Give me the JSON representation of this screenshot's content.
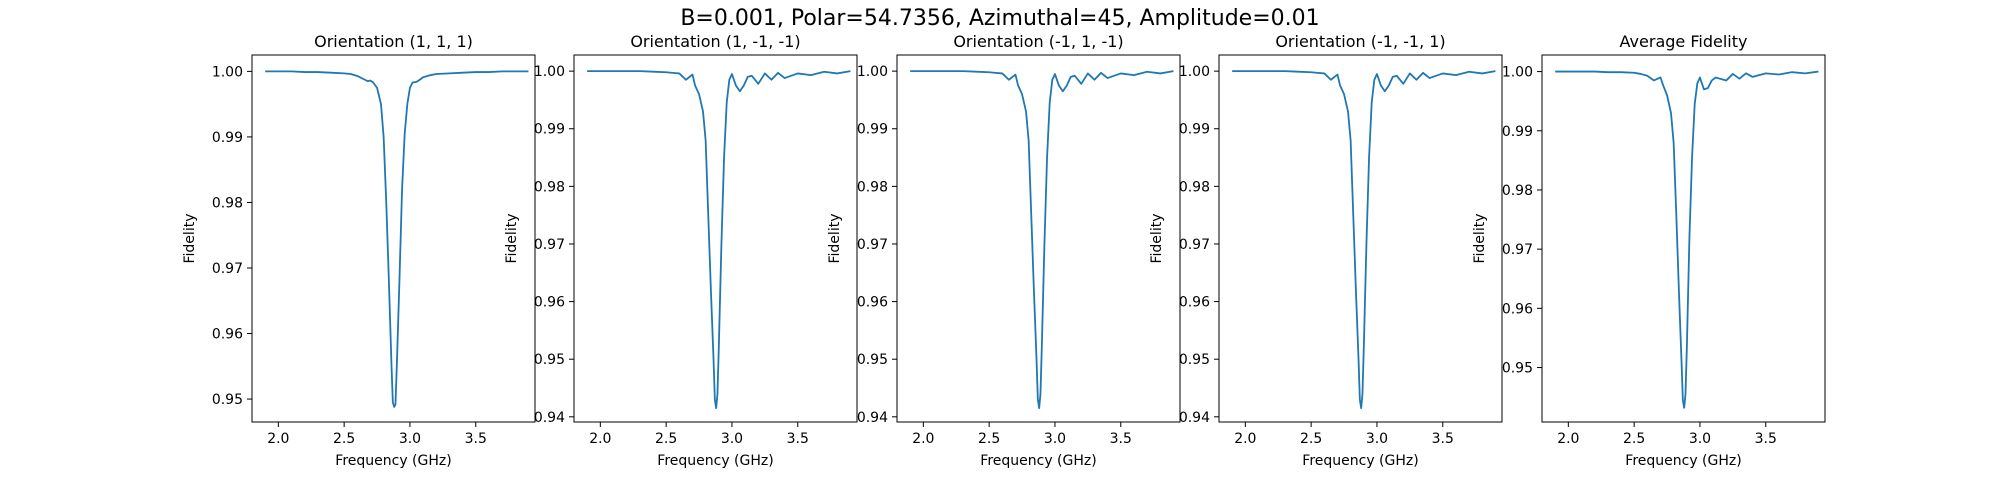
{
  "figure": {
    "title": "B=0.001, Polar=54.7356, Azimuthal=45, Amplitude=0.01"
  },
  "colors": {
    "line": "#1f77b4",
    "axes": "#000000",
    "background": "#ffffff"
  },
  "chart_data": [
    {
      "type": "line",
      "title": "Orientation (1, 1, 1)",
      "xlabel": "Frequency (GHz)",
      "ylabel": "Fidelity",
      "xlim": [
        1.8,
        3.95
      ],
      "ylim": [
        0.9465,
        1.0025
      ],
      "xticks": [
        "2.0",
        "2.5",
        "3.0",
        "3.5"
      ],
      "yticks": [
        "0.95",
        "0.96",
        "0.97",
        "0.98",
        "0.99",
        "1.00"
      ],
      "grid": false,
      "series": [
        {
          "x": [
            1.9,
            2.0,
            2.1,
            2.2,
            2.3,
            2.4,
            2.5,
            2.55,
            2.6,
            2.65,
            2.68,
            2.7,
            2.72,
            2.75,
            2.78,
            2.8,
            2.82,
            2.84,
            2.86,
            2.87,
            2.88,
            2.89,
            2.9,
            2.92,
            2.94,
            2.96,
            2.98,
            3.0,
            3.02,
            3.05,
            3.08,
            3.1,
            3.15,
            3.2,
            3.3,
            3.4,
            3.5,
            3.6,
            3.7,
            3.8,
            3.9
          ],
          "y": [
            1.0,
            1.0,
            1.0,
            0.9999,
            0.9999,
            0.9998,
            0.9997,
            0.9996,
            0.9993,
            0.9988,
            0.9985,
            0.9986,
            0.9983,
            0.9975,
            0.995,
            0.99,
            0.98,
            0.968,
            0.955,
            0.9495,
            0.9488,
            0.9492,
            0.955,
            0.968,
            0.982,
            0.9905,
            0.995,
            0.9975,
            0.9983,
            0.9984,
            0.9988,
            0.9991,
            0.9994,
            0.9996,
            0.9997,
            0.9998,
            0.9999,
            0.9999,
            1.0,
            1.0,
            1.0
          ]
        }
      ]
    },
    {
      "type": "line",
      "title": "Orientation (1, -1, -1)",
      "xlabel": "Frequency (GHz)",
      "ylabel": "Fidelity",
      "xlim": [
        1.8,
        3.95
      ],
      "ylim": [
        0.9391,
        1.0028
      ],
      "xticks": [
        "2.0",
        "2.5",
        "3.0",
        "3.5"
      ],
      "yticks": [
        "0.94",
        "0.95",
        "0.96",
        "0.97",
        "0.98",
        "0.99",
        "1.00"
      ],
      "grid": false,
      "series": [
        {
          "x": [
            1.9,
            2.0,
            2.1,
            2.2,
            2.3,
            2.4,
            2.5,
            2.55,
            2.6,
            2.65,
            2.7,
            2.72,
            2.75,
            2.78,
            2.8,
            2.82,
            2.84,
            2.86,
            2.87,
            2.88,
            2.89,
            2.9,
            2.92,
            2.94,
            2.96,
            2.98,
            3.0,
            3.03,
            3.06,
            3.09,
            3.12,
            3.15,
            3.2,
            3.25,
            3.3,
            3.35,
            3.4,
            3.5,
            3.6,
            3.7,
            3.8,
            3.9
          ],
          "y": [
            1.0,
            1.0,
            1.0,
            1.0,
            1.0,
            0.9999,
            0.9998,
            0.9997,
            0.9996,
            0.9985,
            0.9994,
            0.9975,
            0.996,
            0.993,
            0.988,
            0.975,
            0.962,
            0.95,
            0.943,
            0.9415,
            0.944,
            0.952,
            0.97,
            0.985,
            0.9945,
            0.9985,
            0.9995,
            0.9975,
            0.9965,
            0.9975,
            0.999,
            0.9992,
            0.9978,
            0.9996,
            0.9985,
            0.9997,
            0.9988,
            0.9996,
            0.9993,
            0.9999,
            0.9996,
            1.0
          ]
        }
      ]
    },
    {
      "type": "line",
      "title": "Orientation (-1, 1, -1)",
      "xlabel": "Frequency (GHz)",
      "ylabel": "Fidelity",
      "xlim": [
        1.8,
        3.95
      ],
      "ylim": [
        0.9391,
        1.0028
      ],
      "xticks": [
        "2.0",
        "2.5",
        "3.0",
        "3.5"
      ],
      "yticks": [
        "0.94",
        "0.95",
        "0.96",
        "0.97",
        "0.98",
        "0.99",
        "1.00"
      ],
      "grid": false,
      "series": [
        {
          "x": [
            1.9,
            2.0,
            2.1,
            2.2,
            2.3,
            2.4,
            2.5,
            2.55,
            2.6,
            2.65,
            2.7,
            2.72,
            2.75,
            2.78,
            2.8,
            2.82,
            2.84,
            2.86,
            2.87,
            2.88,
            2.89,
            2.9,
            2.92,
            2.94,
            2.96,
            2.98,
            3.0,
            3.03,
            3.06,
            3.09,
            3.12,
            3.15,
            3.2,
            3.25,
            3.3,
            3.35,
            3.4,
            3.5,
            3.6,
            3.7,
            3.8,
            3.9
          ],
          "y": [
            1.0,
            1.0,
            1.0,
            1.0,
            1.0,
            0.9999,
            0.9998,
            0.9997,
            0.9996,
            0.9985,
            0.9994,
            0.9975,
            0.996,
            0.993,
            0.988,
            0.975,
            0.962,
            0.95,
            0.943,
            0.9415,
            0.944,
            0.952,
            0.97,
            0.985,
            0.9945,
            0.9985,
            0.9995,
            0.9975,
            0.9965,
            0.9975,
            0.999,
            0.9992,
            0.9978,
            0.9996,
            0.9985,
            0.9997,
            0.9988,
            0.9996,
            0.9993,
            0.9999,
            0.9996,
            1.0
          ]
        }
      ]
    },
    {
      "type": "line",
      "title": "Orientation (-1, -1, 1)",
      "xlabel": "Frequency (GHz)",
      "ylabel": "Fidelity",
      "xlim": [
        1.8,
        3.95
      ],
      "ylim": [
        0.9391,
        1.0028
      ],
      "xticks": [
        "2.0",
        "2.5",
        "3.0",
        "3.5"
      ],
      "yticks": [
        "0.94",
        "0.95",
        "0.96",
        "0.97",
        "0.98",
        "0.99",
        "1.00"
      ],
      "grid": false,
      "series": [
        {
          "x": [
            1.9,
            2.0,
            2.1,
            2.2,
            2.3,
            2.4,
            2.5,
            2.55,
            2.6,
            2.65,
            2.7,
            2.72,
            2.75,
            2.78,
            2.8,
            2.82,
            2.84,
            2.86,
            2.87,
            2.88,
            2.89,
            2.9,
            2.92,
            2.94,
            2.96,
            2.98,
            3.0,
            3.03,
            3.06,
            3.09,
            3.12,
            3.15,
            3.2,
            3.25,
            3.3,
            3.35,
            3.4,
            3.5,
            3.6,
            3.7,
            3.8,
            3.9
          ],
          "y": [
            1.0,
            1.0,
            1.0,
            1.0,
            1.0,
            0.9999,
            0.9998,
            0.9997,
            0.9996,
            0.9985,
            0.9994,
            0.9975,
            0.996,
            0.993,
            0.988,
            0.975,
            0.962,
            0.95,
            0.943,
            0.9415,
            0.944,
            0.952,
            0.97,
            0.985,
            0.9945,
            0.9985,
            0.9995,
            0.9975,
            0.9965,
            0.9975,
            0.999,
            0.9992,
            0.9978,
            0.9996,
            0.9985,
            0.9997,
            0.9988,
            0.9996,
            0.9993,
            0.9999,
            0.9996,
            1.0
          ]
        }
      ]
    },
    {
      "type": "line",
      "title": "Average Fidelity",
      "xlabel": "Frequency (GHz)",
      "ylabel": "Fidelity",
      "xlim": [
        1.8,
        3.95
      ],
      "ylim": [
        0.9408,
        1.0028
      ],
      "xticks": [
        "2.0",
        "2.5",
        "3.0",
        "3.5"
      ],
      "yticks": [
        "0.95",
        "0.96",
        "0.97",
        "0.98",
        "0.99",
        "1.00"
      ],
      "grid": false,
      "series": [
        {
          "x": [
            1.9,
            2.0,
            2.1,
            2.2,
            2.3,
            2.4,
            2.5,
            2.55,
            2.6,
            2.65,
            2.7,
            2.72,
            2.75,
            2.78,
            2.8,
            2.82,
            2.84,
            2.86,
            2.87,
            2.88,
            2.89,
            2.9,
            2.92,
            2.94,
            2.96,
            2.98,
            3.0,
            3.03,
            3.06,
            3.09,
            3.12,
            3.15,
            3.2,
            3.25,
            3.3,
            3.35,
            3.4,
            3.5,
            3.6,
            3.7,
            3.8,
            3.9
          ],
          "y": [
            1.0,
            1.0,
            1.0,
            1.0,
            0.9999,
            0.9999,
            0.9998,
            0.9996,
            0.9993,
            0.9985,
            0.999,
            0.9977,
            0.996,
            0.993,
            0.988,
            0.976,
            0.963,
            0.951,
            0.9445,
            0.9432,
            0.9455,
            0.953,
            0.972,
            0.9855,
            0.9945,
            0.998,
            0.999,
            0.997,
            0.9972,
            0.9985,
            0.999,
            0.9988,
            0.9985,
            0.9996,
            0.9988,
            0.9997,
            0.9991,
            0.9997,
            0.9995,
            0.9999,
            0.9997,
            1.0
          ]
        }
      ]
    }
  ]
}
